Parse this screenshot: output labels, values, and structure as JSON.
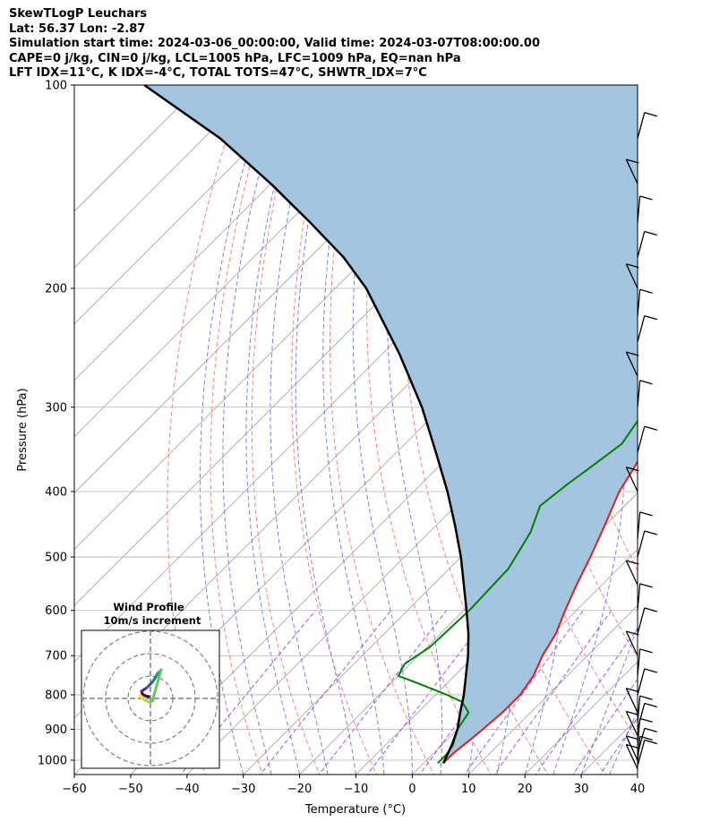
{
  "header": {
    "line1": "SkewTLogP Leuchars",
    "line2": "Lat: 56.37   Lon: -2.87",
    "line3": "Simulation start time: 2024-03-06_00:00:00, Valid time: 2024-03-07T08:00:00.00",
    "line4": "CAPE=0 j/kg, CIN=0 j/kg, LCL=1005 hPa, LFC=1009 hPa, EQ=nan hPa",
    "line5": "LFT IDX=11°C, K IDX=-4°C, TOTAL TOTS=47°C, SHWTR_IDX=7°C"
  },
  "chart_data": {
    "type": "line",
    "xlabel": "Temperature (°C)",
    "ylabel": "Pressure (hPa)",
    "xlim": [
      -60,
      40
    ],
    "ylim": [
      1050,
      100
    ],
    "y_scale": "log",
    "skew": "skew-T",
    "grid": true,
    "x_ticks": [
      -60,
      -50,
      -40,
      -30,
      -20,
      -10,
      0,
      10,
      20,
      30,
      40
    ],
    "y_ticks": [
      100,
      200,
      300,
      400,
      500,
      600,
      700,
      800,
      900,
      1000
    ],
    "series": [
      {
        "kind": "temperature",
        "color": "#e41a1c",
        "points": [
          [
            3.5,
            1010
          ],
          [
            3.5,
            980
          ],
          [
            4,
            940
          ],
          [
            4.5,
            900
          ],
          [
            5,
            850
          ],
          [
            5,
            800
          ],
          [
            4,
            750
          ],
          [
            2,
            700
          ],
          [
            0.5,
            650
          ],
          [
            -2,
            600
          ],
          [
            -4.5,
            550
          ],
          [
            -7,
            500
          ],
          [
            -10,
            450
          ],
          [
            -13.5,
            400
          ],
          [
            -15,
            370
          ],
          [
            -17,
            340
          ],
          [
            -19.5,
            300
          ],
          [
            -20.5,
            270
          ],
          [
            -21,
            255
          ],
          [
            -20.5,
            240
          ],
          [
            -19,
            230
          ],
          [
            -17,
            215
          ],
          [
            -15,
            200
          ],
          [
            -13,
            185
          ],
          [
            -10,
            170
          ],
          [
            -5,
            150
          ],
          [
            -1,
            135
          ],
          [
            2,
            124
          ],
          [
            6,
            110
          ],
          [
            8,
            104
          ],
          [
            9,
            100
          ]
        ]
      },
      {
        "kind": "dewpoint",
        "color": "#008000",
        "points": [
          [
            2.5,
            1010
          ],
          [
            2.5,
            980
          ],
          [
            2,
            950
          ],
          [
            0,
            900
          ],
          [
            -1,
            850
          ],
          [
            -4,
            820
          ],
          [
            -8,
            800
          ],
          [
            -15,
            770
          ],
          [
            -20,
            750
          ],
          [
            -21,
            720
          ],
          [
            -19.5,
            680
          ],
          [
            -19,
            600
          ],
          [
            -19.5,
            520
          ],
          [
            -22,
            460
          ],
          [
            -25,
            420
          ],
          [
            -24,
            390
          ],
          [
            -23,
            370
          ],
          [
            -21.5,
            340
          ],
          [
            -23,
            310
          ],
          [
            -24.5,
            280
          ],
          [
            -25,
            255
          ],
          [
            -24,
            235
          ],
          [
            -22,
            215
          ],
          [
            -21.5,
            200
          ],
          [
            -22,
            185
          ],
          [
            -23,
            175
          ],
          [
            -23.5,
            165
          ],
          [
            -22,
            155
          ],
          [
            -20,
            145
          ],
          [
            -17,
            130
          ],
          [
            -14,
            117
          ],
          [
            -11,
            106
          ],
          [
            -9,
            100
          ]
        ]
      },
      {
        "kind": "parcel",
        "color": "#000000",
        "points": [
          [
            3.5,
            1010
          ],
          [
            1.8,
            950
          ],
          [
            0,
            900
          ],
          [
            -2.5,
            850
          ],
          [
            -5,
            800
          ],
          [
            -8,
            750
          ],
          [
            -11.2,
            700
          ],
          [
            -15,
            650
          ],
          [
            -19.5,
            600
          ],
          [
            -24.5,
            550
          ],
          [
            -30,
            500
          ],
          [
            -36.5,
            450
          ],
          [
            -44,
            400
          ],
          [
            -53,
            350
          ],
          [
            -63.5,
            300
          ],
          [
            -77,
            250
          ],
          [
            -94.5,
            200
          ],
          [
            -104,
            180
          ],
          [
            -116,
            160
          ],
          [
            -130,
            140
          ],
          [
            -147,
            120
          ],
          [
            -170,
            100
          ]
        ]
      }
    ],
    "cape_shading": {
      "color": "#a3c5df",
      "between": [
        "temperature",
        "parcel"
      ]
    },
    "background_lines": {
      "isotherms": {
        "color": "#a0a0a0"
      },
      "dry_adiabats": {
        "color": "#ff6a6a",
        "style": "dashed"
      },
      "moist_adiabats": {
        "color": "#5a6bff",
        "style": "dashed"
      },
      "mixing_ratio": {
        "color": "#8a2be2",
        "style": "dashed"
      }
    },
    "wind_barbs": {
      "levels_hPa": [
        1030,
        1020,
        1010,
        1000,
        980,
        950,
        920,
        900,
        880,
        850,
        800,
        750,
        700,
        650,
        600,
        550,
        500,
        470,
        400,
        350,
        300,
        270,
        240,
        220,
        200,
        180,
        160,
        140,
        120
      ],
      "color": "#000000"
    },
    "inset": {
      "title": "Wind Profile",
      "subtitle": "10m/s increment",
      "type": "hodograph",
      "rings": 3,
      "colormap": "viridis",
      "points": [
        [
          -0.2,
          0.2
        ],
        [
          -0.6,
          0.3
        ],
        [
          -0.9,
          0.5
        ],
        [
          -1,
          0.8
        ],
        [
          -0.7,
          1
        ],
        [
          -0.4,
          1.2
        ],
        [
          -0.1,
          1.5
        ],
        [
          0.2,
          1.8
        ],
        [
          0.4,
          2.1
        ],
        [
          0.6,
          2.4
        ],
        [
          0.7,
          2.6
        ],
        [
          0.8,
          2.8
        ],
        [
          0.9,
          2.9
        ],
        [
          1,
          3
        ],
        [
          1.1,
          3.1
        ],
        [
          1.2,
          3.2
        ],
        [
          0.2,
          -0.3
        ],
        [
          -0.2,
          -0.4
        ],
        [
          -0.6,
          -0.2
        ],
        [
          -0.9,
          0.1
        ],
        [
          -1.2,
          0.3
        ]
      ]
    }
  }
}
